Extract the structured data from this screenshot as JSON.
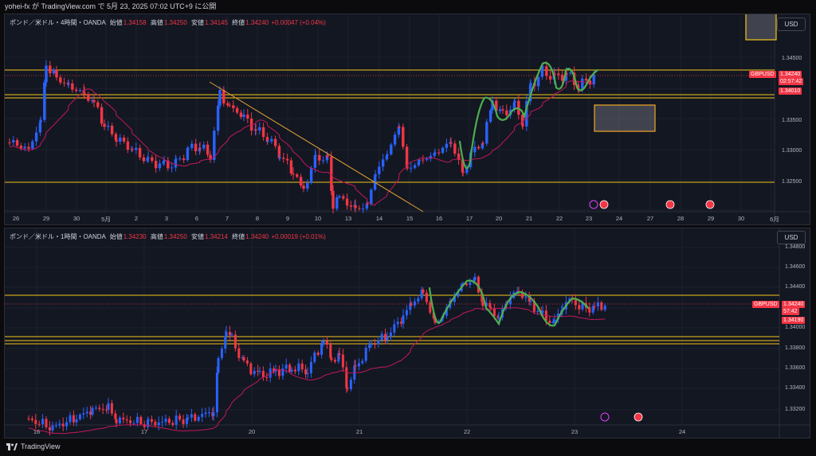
{
  "header": {
    "publish_text": "yohei-fx が TradingView.com で 5月 23, 2025 07:02 UTC+9 に公開"
  },
  "colors": {
    "bull": "#089981",
    "bear": "#f23645",
    "bull_candle": "#2962ff",
    "level": "#f5c518",
    "ma": "#c2185b",
    "wave": "#4caf50",
    "trend": "#e0a030"
  },
  "chart_top": {
    "legend": {
      "symbol": "ポンド／米ドル・4時間・OANDA",
      "open_label": "始値",
      "open": "1.34158",
      "high_label": "高値",
      "high": "1.34250",
      "low_label": "安値",
      "low": "1.34145",
      "close_label": "終値",
      "close": "1.34240",
      "change": "+0.00047 (+0.04%)"
    },
    "currency_button": "USD",
    "symbol_tag": "GBPUSD",
    "price_tag": "1.34240",
    "countdown": "02:57:42",
    "level_tag": "1.34010",
    "y_ticks": [
      "1.34500",
      "1.33500",
      "1.33000",
      "1.32500"
    ],
    "x_ticks": [
      "26",
      "29",
      "30",
      "5月",
      "2",
      "3",
      "6",
      "7",
      "8",
      "9",
      "10",
      "13",
      "14",
      "15",
      "16",
      "17",
      "20",
      "21",
      "22",
      "23",
      "24",
      "27",
      "28",
      "29",
      "30",
      "6月"
    ]
  },
  "chart_bottom": {
    "legend": {
      "symbol": "ポンド／米ドル・1時間・OANDA",
      "open_label": "始値",
      "open": "1.34230",
      "high_label": "高値",
      "high": "1.34250",
      "low_label": "安値",
      "low": "1.34214",
      "close_label": "終値",
      "close": "1.34240",
      "change": "+0.00019 (+0.01%)"
    },
    "currency_button": "USD",
    "symbol_tag": "GBPUSD",
    "price_tag": "1.34240",
    "countdown": "57:42",
    "level_tag": "1.34190",
    "y_ticks": [
      "1.34800",
      "1.34600",
      "1.34400",
      "1.34000",
      "1.33800",
      "1.33600",
      "1.33400",
      "1.33200"
    ],
    "x_ticks": [
      "16",
      "17",
      "20",
      "21",
      "22",
      "23",
      "24"
    ]
  },
  "footer": {
    "brand": "TradingView"
  }
}
